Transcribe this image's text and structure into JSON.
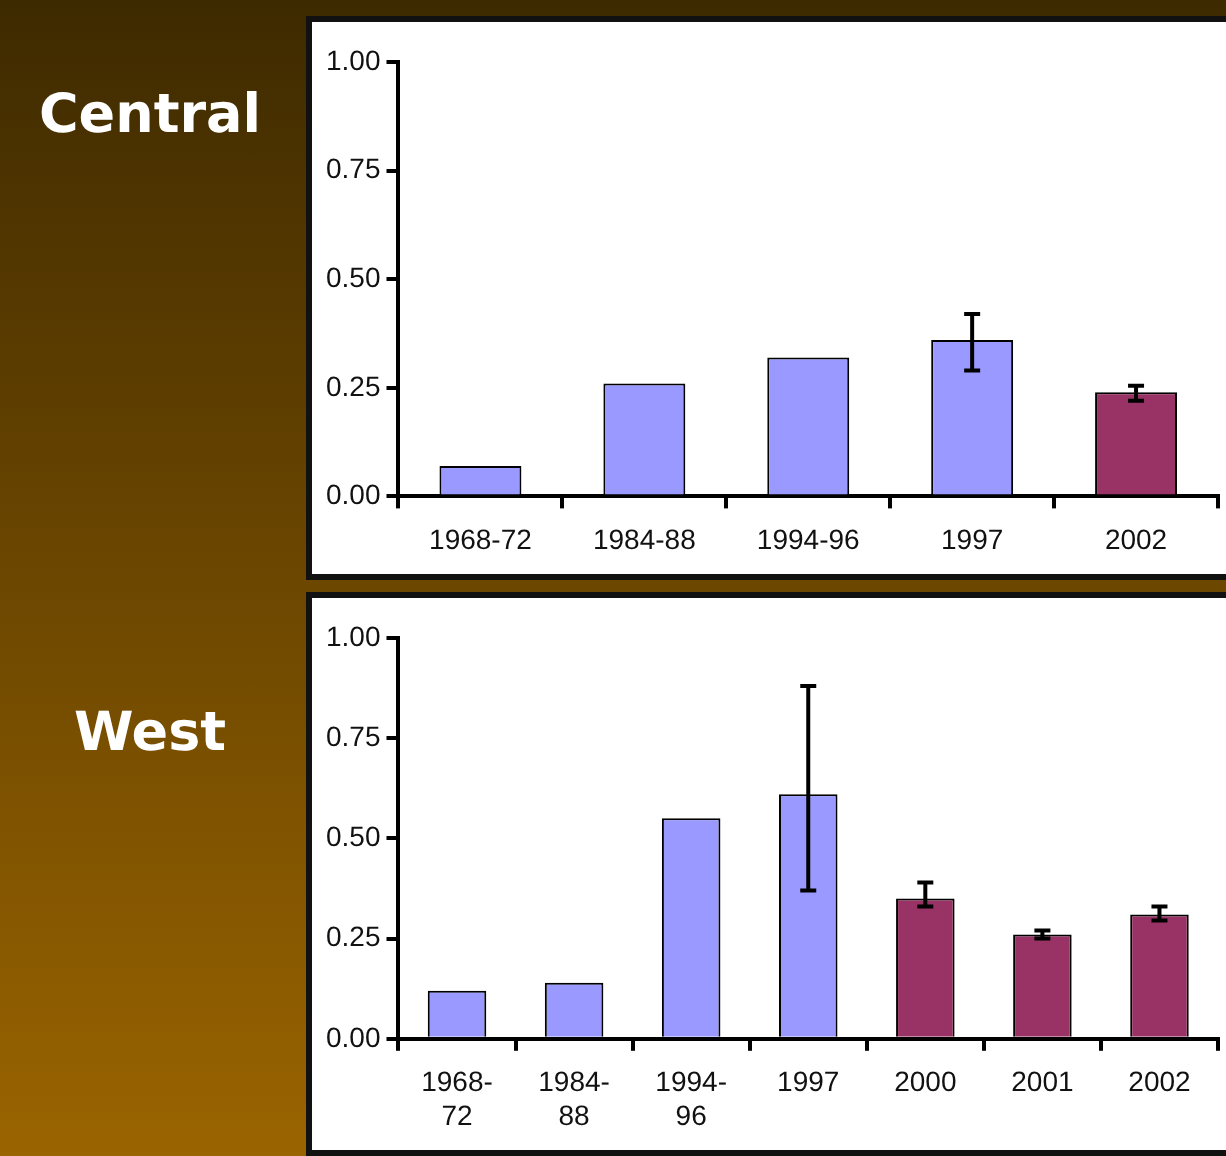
{
  "chart_data": [
    {
      "type": "bar",
      "title": "Central",
      "categories": [
        "1968-72",
        "1984-88",
        "1994-96",
        "1997",
        "2002"
      ],
      "values": [
        0.07,
        0.26,
        0.32,
        0.36,
        0.24
      ],
      "colors": [
        "#9999ff",
        "#9999ff",
        "#9999ff",
        "#9999ff",
        "#993366"
      ],
      "errors": [
        null,
        null,
        null,
        [
          0.29,
          0.42
        ],
        [
          0.22,
          0.255
        ]
      ],
      "ylim": [
        0,
        1
      ],
      "yticks": [
        {
          "value": 0,
          "label": "0.00"
        },
        {
          "value": 0.25,
          "label": "0.25"
        },
        {
          "value": 0.5,
          "label": "0.50"
        },
        {
          "value": 0.75,
          "label": "0.75"
        },
        {
          "value": 1,
          "label": "1.00"
        }
      ],
      "grid": false,
      "legend": false
    },
    {
      "type": "bar",
      "title": "West",
      "categories": [
        "1968-72",
        "1984-88",
        "1994-96",
        "1997",
        "2000",
        "2001",
        "2002"
      ],
      "values": [
        0.12,
        0.14,
        0.55,
        0.61,
        0.35,
        0.26,
        0.31
      ],
      "colors": [
        "#9999ff",
        "#9999ff",
        "#9999ff",
        "#9999ff",
        "#993366",
        "#993366",
        "#993366"
      ],
      "errors": [
        null,
        null,
        null,
        [
          0.37,
          0.88
        ],
        [
          0.33,
          0.39
        ],
        [
          0.25,
          0.27
        ],
        [
          0.295,
          0.33
        ]
      ],
      "ylim": [
        0,
        1
      ],
      "yticks": [
        {
          "value": 0,
          "label": "0.00"
        },
        {
          "value": 0.25,
          "label": "0.25"
        },
        {
          "value": 0.5,
          "label": "0.50"
        },
        {
          "value": 0.75,
          "label": "0.75"
        },
        {
          "value": 1,
          "label": "1.00"
        }
      ],
      "grid": false,
      "legend": false
    }
  ]
}
